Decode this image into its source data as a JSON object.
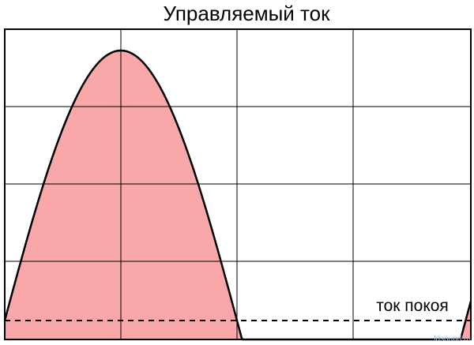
{
  "title": "Управляемый ток",
  "quiescent_label": "ток покоя",
  "watermark": "ldsound.ru"
}
